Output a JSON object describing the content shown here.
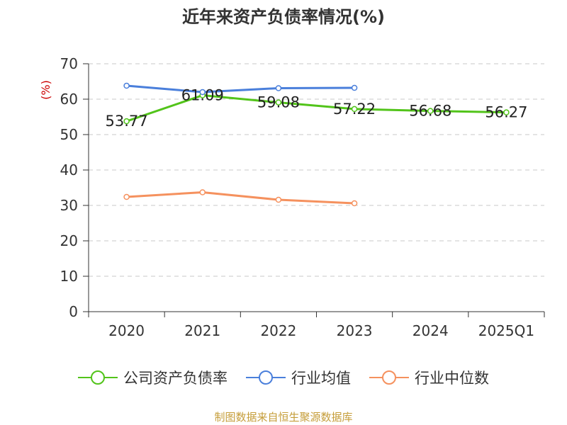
{
  "chart_data": {
    "type": "line",
    "title": "近年来资产负债率情况(%)",
    "ylabel": "(%)",
    "xlabel": "",
    "categories": [
      "2020",
      "2021",
      "2022",
      "2023",
      "2024",
      "2025Q1"
    ],
    "ylim": [
      0,
      70
    ],
    "yticks": [
      0,
      10,
      20,
      30,
      40,
      50,
      60,
      70
    ],
    "grid": true,
    "legend_position": "bottom",
    "series": [
      {
        "name": "公司资产负债率",
        "color": "#52c41a",
        "values": [
          53.77,
          61.09,
          59.08,
          57.22,
          56.68,
          56.27
        ],
        "data_labels": [
          "53.77",
          "61.09",
          "59.08",
          "57.22",
          "56.68",
          "56.27"
        ]
      },
      {
        "name": "行业均值",
        "color": "#4a7fdb",
        "values": [
          63.8,
          62.0,
          63.1,
          63.2,
          null,
          null
        ]
      },
      {
        "name": "行业中位数",
        "color": "#f5915e",
        "values": [
          32.4,
          33.7,
          31.6,
          30.6,
          null,
          null
        ]
      }
    ]
  },
  "footer": "制图数据来自恒生聚源数据库"
}
